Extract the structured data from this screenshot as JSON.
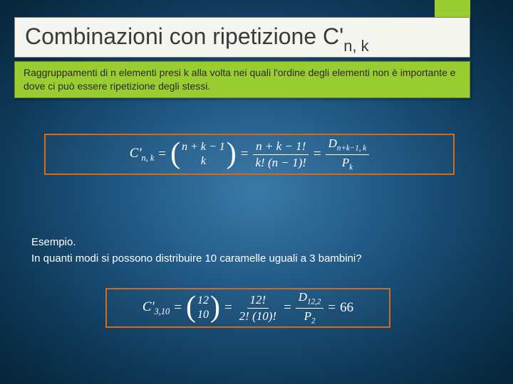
{
  "accent_color": "#9acd32",
  "title": {
    "main": "Combinazioni con ripetizione C'",
    "subscript": "n, k"
  },
  "description": "Raggruppamenti di n elementi presi k alla volta nei quali l'ordine degli elementi non è importante e dove ci può essere ripetizione degli stessi.",
  "formula_main": {
    "lhs": "C'",
    "lhs_sub": "n, k",
    "binom_top": "n + k − 1",
    "binom_bot": "k",
    "frac1_num": "n + k − 1!",
    "frac1_den": "k! (n − 1)!",
    "frac2_num": "D",
    "frac2_num_sub": "n+k−1, k",
    "frac2_den": "P",
    "frac2_den_sub": "k"
  },
  "example": {
    "label": "Esempio.",
    "question": "In quanti modi si possono distribuire 10 caramelle uguali a 3 bambini?"
  },
  "formula_example": {
    "lhs": "C'",
    "lhs_sub": "3,10",
    "binom_top": "12",
    "binom_bot": "10",
    "frac1_num": "12!",
    "frac1_den": "2! (10)!",
    "frac2_num": "D",
    "frac2_num_sub": "12,2",
    "frac2_den": "P",
    "frac2_den_sub": "2",
    "result": "66"
  },
  "style": {
    "border_color": "#d46a1e",
    "bg_gradient_inner": "#3a7aa8",
    "bg_gradient_outer": "#062538",
    "title_bg": "#f5f5f0",
    "text_white": "#ffffff"
  }
}
